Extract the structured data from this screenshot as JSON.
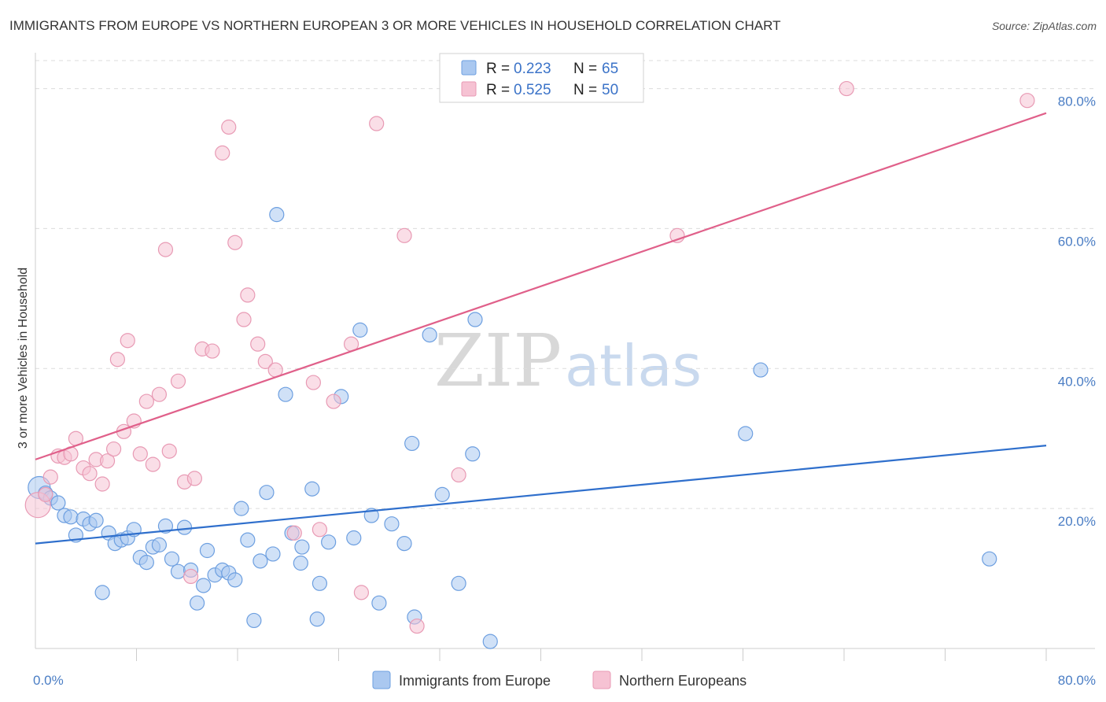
{
  "chart_data": {
    "type": "scatter",
    "title": "IMMIGRANTS FROM EUROPE VS NORTHERN EUROPEAN 3 OR MORE VEHICLES IN HOUSEHOLD CORRELATION CHART",
    "source": "Source: ZipAtlas.com",
    "ylabel": "3 or more Vehicles in Household",
    "xlim": [
      0,
      80
    ],
    "ylim": [
      0,
      84
    ],
    "x_tick_labels": [
      "0.0%",
      "80.0%"
    ],
    "y_tick_labels": [
      {
        "value": 20,
        "label": "20.0%"
      },
      {
        "value": 40,
        "label": "40.0%"
      },
      {
        "value": 60,
        "label": "60.0%"
      },
      {
        "value": 80,
        "label": "80.0%"
      }
    ],
    "watermark": {
      "zip": "ZIP",
      "atlas": "atlas"
    },
    "legend": [
      {
        "r_label": "R = ",
        "r_value": "0.223",
        "n_label": "N = ",
        "n_value": "65"
      },
      {
        "r_label": "R = ",
        "r_value": "0.525",
        "n_label": "N = ",
        "n_value": "50"
      }
    ],
    "series": [
      {
        "name": "Immigrants from Europe",
        "color": "#6d9fe0",
        "fill": "#aac8f0",
        "line_color": "#2f6fcc",
        "trend": {
          "x0": 0,
          "y0": 15.0,
          "x1": 80,
          "y1": 29.0
        },
        "points": [
          {
            "x": 0.3,
            "y": 23.0,
            "r": 14
          },
          {
            "x": 0.8,
            "y": 22.2
          },
          {
            "x": 1.2,
            "y": 21.5
          },
          {
            "x": 1.8,
            "y": 20.8
          },
          {
            "x": 2.3,
            "y": 19.0
          },
          {
            "x": 2.8,
            "y": 18.8
          },
          {
            "x": 3.2,
            "y": 16.2
          },
          {
            "x": 3.8,
            "y": 18.5
          },
          {
            "x": 4.3,
            "y": 17.8
          },
          {
            "x": 4.8,
            "y": 18.3
          },
          {
            "x": 5.3,
            "y": 8.0
          },
          {
            "x": 5.8,
            "y": 16.5
          },
          {
            "x": 6.3,
            "y": 15.0
          },
          {
            "x": 6.8,
            "y": 15.5
          },
          {
            "x": 7.3,
            "y": 15.8
          },
          {
            "x": 7.8,
            "y": 17.0
          },
          {
            "x": 8.3,
            "y": 13.0
          },
          {
            "x": 8.8,
            "y": 12.3
          },
          {
            "x": 9.3,
            "y": 14.5
          },
          {
            "x": 9.8,
            "y": 14.8
          },
          {
            "x": 10.3,
            "y": 17.5
          },
          {
            "x": 10.8,
            "y": 12.8
          },
          {
            "x": 11.3,
            "y": 11.0
          },
          {
            "x": 11.8,
            "y": 17.3
          },
          {
            "x": 12.3,
            "y": 11.2
          },
          {
            "x": 12.8,
            "y": 6.5
          },
          {
            "x": 13.3,
            "y": 9.0
          },
          {
            "x": 13.6,
            "y": 14.0
          },
          {
            "x": 14.2,
            "y": 10.5
          },
          {
            "x": 14.8,
            "y": 11.2
          },
          {
            "x": 15.3,
            "y": 10.8
          },
          {
            "x": 15.8,
            "y": 9.8
          },
          {
            "x": 16.3,
            "y": 20.0
          },
          {
            "x": 16.8,
            "y": 15.5
          },
          {
            "x": 17.3,
            "y": 4.0
          },
          {
            "x": 17.8,
            "y": 12.5
          },
          {
            "x": 18.3,
            "y": 22.3
          },
          {
            "x": 18.8,
            "y": 13.5
          },
          {
            "x": 19.1,
            "y": 62.0
          },
          {
            "x": 19.8,
            "y": 36.3
          },
          {
            "x": 20.3,
            "y": 16.5
          },
          {
            "x": 21.0,
            "y": 12.2
          },
          {
            "x": 21.1,
            "y": 14.5
          },
          {
            "x": 21.9,
            "y": 22.8
          },
          {
            "x": 22.3,
            "y": 4.2
          },
          {
            "x": 22.5,
            "y": 9.3
          },
          {
            "x": 23.2,
            "y": 15.2
          },
          {
            "x": 24.2,
            "y": 36.0
          },
          {
            "x": 25.2,
            "y": 15.8
          },
          {
            "x": 25.7,
            "y": 45.5
          },
          {
            "x": 26.6,
            "y": 19.0
          },
          {
            "x": 27.2,
            "y": 6.5
          },
          {
            "x": 28.2,
            "y": 17.8
          },
          {
            "x": 29.2,
            "y": 15.0
          },
          {
            "x": 29.8,
            "y": 29.3
          },
          {
            "x": 30.0,
            "y": 4.5
          },
          {
            "x": 31.2,
            "y": 44.8
          },
          {
            "x": 32.2,
            "y": 22.0
          },
          {
            "x": 33.5,
            "y": 9.3
          },
          {
            "x": 34.6,
            "y": 27.8
          },
          {
            "x": 34.8,
            "y": 47.0
          },
          {
            "x": 36.0,
            "y": 1.0
          },
          {
            "x": 56.2,
            "y": 30.7
          },
          {
            "x": 57.4,
            "y": 39.8
          },
          {
            "x": 75.5,
            "y": 12.8
          }
        ]
      },
      {
        "name": "Northern Europeans",
        "color": "#e89ab4",
        "fill": "#f6c2d3",
        "line_color": "#e0608a",
        "trend": {
          "x0": 0,
          "y0": 27.0,
          "x1": 80,
          "y1": 76.5
        },
        "points": [
          {
            "x": 0.2,
            "y": 20.5,
            "r": 16
          },
          {
            "x": 0.8,
            "y": 22.0
          },
          {
            "x": 1.2,
            "y": 24.5
          },
          {
            "x": 1.8,
            "y": 27.5
          },
          {
            "x": 2.3,
            "y": 27.3
          },
          {
            "x": 2.8,
            "y": 27.8
          },
          {
            "x": 3.2,
            "y": 30.0
          },
          {
            "x": 3.8,
            "y": 25.8
          },
          {
            "x": 4.3,
            "y": 25.0
          },
          {
            "x": 4.8,
            "y": 27.0
          },
          {
            "x": 5.3,
            "y": 23.5
          },
          {
            "x": 5.7,
            "y": 26.8
          },
          {
            "x": 6.2,
            "y": 28.5
          },
          {
            "x": 6.5,
            "y": 41.3
          },
          {
            "x": 7.0,
            "y": 31.0
          },
          {
            "x": 7.3,
            "y": 44.0
          },
          {
            "x": 7.8,
            "y": 32.5
          },
          {
            "x": 8.3,
            "y": 27.8
          },
          {
            "x": 8.8,
            "y": 35.3
          },
          {
            "x": 9.3,
            "y": 26.3
          },
          {
            "x": 9.8,
            "y": 36.3
          },
          {
            "x": 10.3,
            "y": 57.0
          },
          {
            "x": 10.6,
            "y": 28.2
          },
          {
            "x": 11.3,
            "y": 38.2
          },
          {
            "x": 11.8,
            "y": 23.8
          },
          {
            "x": 12.3,
            "y": 10.3
          },
          {
            "x": 12.6,
            "y": 24.3
          },
          {
            "x": 13.2,
            "y": 42.8
          },
          {
            "x": 14.0,
            "y": 42.5
          },
          {
            "x": 14.8,
            "y": 70.8
          },
          {
            "x": 15.3,
            "y": 74.5
          },
          {
            "x": 15.8,
            "y": 58.0
          },
          {
            "x": 16.5,
            "y": 47.0
          },
          {
            "x": 16.8,
            "y": 50.5
          },
          {
            "x": 17.6,
            "y": 43.5
          },
          {
            "x": 18.2,
            "y": 41.0
          },
          {
            "x": 19.0,
            "y": 39.8
          },
          {
            "x": 20.5,
            "y": 16.5
          },
          {
            "x": 22.0,
            "y": 38.0
          },
          {
            "x": 22.5,
            "y": 17.0
          },
          {
            "x": 23.6,
            "y": 35.3
          },
          {
            "x": 25.0,
            "y": 43.5
          },
          {
            "x": 25.8,
            "y": 8.0
          },
          {
            "x": 27.0,
            "y": 75.0
          },
          {
            "x": 29.2,
            "y": 59.0
          },
          {
            "x": 30.2,
            "y": 3.2
          },
          {
            "x": 33.5,
            "y": 24.8
          },
          {
            "x": 50.8,
            "y": 59.0
          },
          {
            "x": 64.2,
            "y": 80.0
          },
          {
            "x": 78.5,
            "y": 78.3
          }
        ]
      }
    ]
  }
}
